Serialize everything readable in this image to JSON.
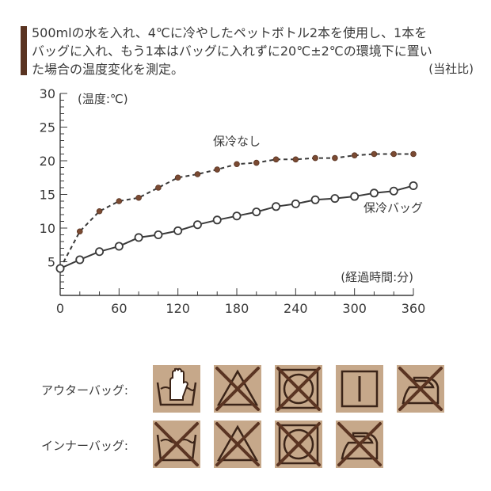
{
  "note": {
    "lines": [
      "500mlの水を入れ、4℃に冷やしたペットボトル2本を使用し、1本を",
      "バッグに入れ、もう1本はバッグに入れずに20℃±2℃の環境下に置い",
      "た場合の温度変化を測定。"
    ],
    "source": "(当社比)"
  },
  "chart_data": {
    "type": "line",
    "ylabel": "(温度:℃)",
    "xlabel": "(経過時間:分)",
    "xlim": [
      0,
      360
    ],
    "ylim": [
      0,
      30
    ],
    "x_ticks": [
      0,
      60,
      120,
      180,
      240,
      300,
      360
    ],
    "y_ticks": [
      5,
      10,
      15,
      20,
      25,
      30
    ],
    "grid": false,
    "series": [
      {
        "name": "保冷なし",
        "style": "dashed",
        "marker": "filled",
        "x": [
          0,
          20,
          40,
          60,
          80,
          100,
          120,
          140,
          160,
          180,
          200,
          220,
          240,
          260,
          280,
          300,
          320,
          340,
          360
        ],
        "values": [
          4,
          9.5,
          12.5,
          14,
          14.5,
          16,
          17.5,
          18,
          18.7,
          19.5,
          19.7,
          20.2,
          20.2,
          20.4,
          20.4,
          20.8,
          21,
          21,
          21
        ]
      },
      {
        "name": "保冷バッグ",
        "style": "solid",
        "marker": "hollow",
        "x": [
          0,
          20,
          40,
          60,
          80,
          100,
          120,
          140,
          160,
          180,
          200,
          220,
          240,
          260,
          280,
          300,
          320,
          340,
          360
        ],
        "values": [
          4,
          5.3,
          6.5,
          7.3,
          8.6,
          9,
          9.6,
          10.5,
          11.2,
          11.8,
          12.4,
          13.2,
          13.6,
          14.2,
          14.4,
          14.7,
          15.2,
          15.5,
          16.3
        ]
      }
    ],
    "colors": {
      "axis": "#3a3a3a",
      "line": "#3a3a3a",
      "marker_fill": "#7a4a32",
      "marker_hollow": "#ffffff"
    }
  },
  "care": {
    "rows": [
      {
        "label": "アウターバッグ:",
        "icons": [
          "hand-wash-icon",
          "do-not-bleach-icon",
          "do-not-tumble-dry-icon",
          "drip-dry-icon",
          "do-not-iron-icon"
        ]
      },
      {
        "label": "インナーバッグ:",
        "icons": [
          "do-not-wash-icon",
          "do-not-bleach-icon",
          "do-not-tumble-dry-icon",
          "do-not-iron-icon"
        ]
      }
    ],
    "colors": {
      "tile": "#c6a88a",
      "ink": "#3b2418",
      "cross": "#5a3422"
    }
  }
}
